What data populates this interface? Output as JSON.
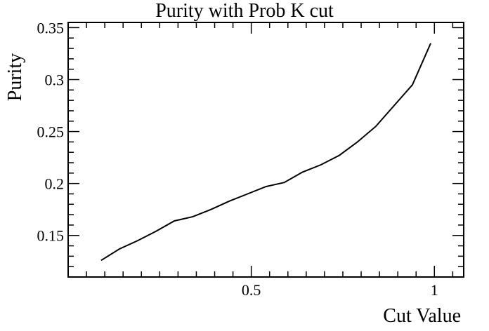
{
  "chart_data": {
    "type": "line",
    "title": "Purity with Prob K cut",
    "xlabel": "Cut Value",
    "ylabel": "Purity",
    "xlim": [
      0.0,
      1.08
    ],
    "ylim": [
      0.11,
      0.355
    ],
    "x_ticks": [
      {
        "value": 0.5,
        "label": "0.5"
      },
      {
        "value": 1.0,
        "label": "1"
      }
    ],
    "y_ticks": [
      {
        "value": 0.15,
        "label": "0.15"
      },
      {
        "value": 0.2,
        "label": "0.2"
      },
      {
        "value": 0.25,
        "label": "0.25"
      },
      {
        "value": 0.3,
        "label": "0.3"
      },
      {
        "value": 0.35,
        "label": "0.35"
      }
    ],
    "grid": false,
    "series": [
      {
        "x": [
          0.09,
          0.14,
          0.19,
          0.24,
          0.29,
          0.34,
          0.39,
          0.44,
          0.49,
          0.54,
          0.59,
          0.64,
          0.69,
          0.74,
          0.79,
          0.84,
          0.89,
          0.94,
          0.99
        ],
        "y": [
          0.126,
          0.137,
          0.145,
          0.154,
          0.164,
          0.168,
          0.175,
          0.183,
          0.19,
          0.197,
          0.201,
          0.211,
          0.218,
          0.227,
          0.24,
          0.255,
          0.275,
          0.295,
          0.335
        ]
      }
    ]
  }
}
